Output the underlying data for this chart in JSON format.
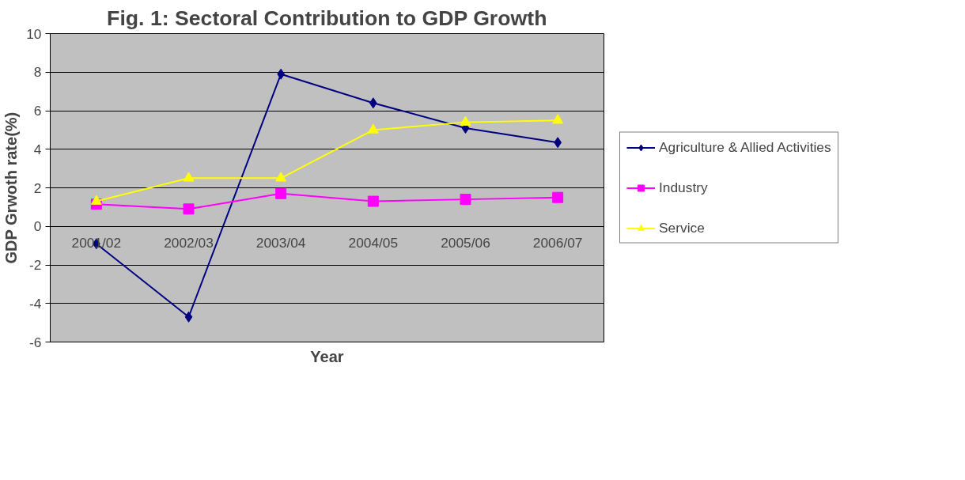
{
  "chart_data": {
    "type": "line",
    "title": "Fig. 1: Sectoral Contribution to GDP Growth",
    "xlabel": "Year",
    "ylabel": "GDP Grwoth rate(%)",
    "categories": [
      "2001/02",
      "2002/03",
      "2003/04",
      "2004/05",
      "2005/06",
      "2006/07"
    ],
    "series": [
      {
        "name": "Agriculture & Allied Activities",
        "color": "#000080",
        "marker": "diamond",
        "values": [
          -0.9,
          -4.7,
          7.9,
          6.4,
          5.1,
          4.35
        ]
      },
      {
        "name": "Industry",
        "color": "#ff00ff",
        "marker": "square",
        "values": [
          1.15,
          0.9,
          1.7,
          1.3,
          1.4,
          1.5
        ]
      },
      {
        "name": "Service",
        "color": "#ffff00",
        "marker": "triangle",
        "values": [
          1.3,
          2.5,
          2.5,
          5.0,
          5.4,
          5.5
        ]
      }
    ],
    "ylim": [
      -6,
      10
    ],
    "yticks": [
      -6,
      -4,
      -2,
      0,
      2,
      4,
      6,
      8,
      10
    ],
    "grid": "y",
    "legend": "right",
    "line_style": "solid"
  }
}
